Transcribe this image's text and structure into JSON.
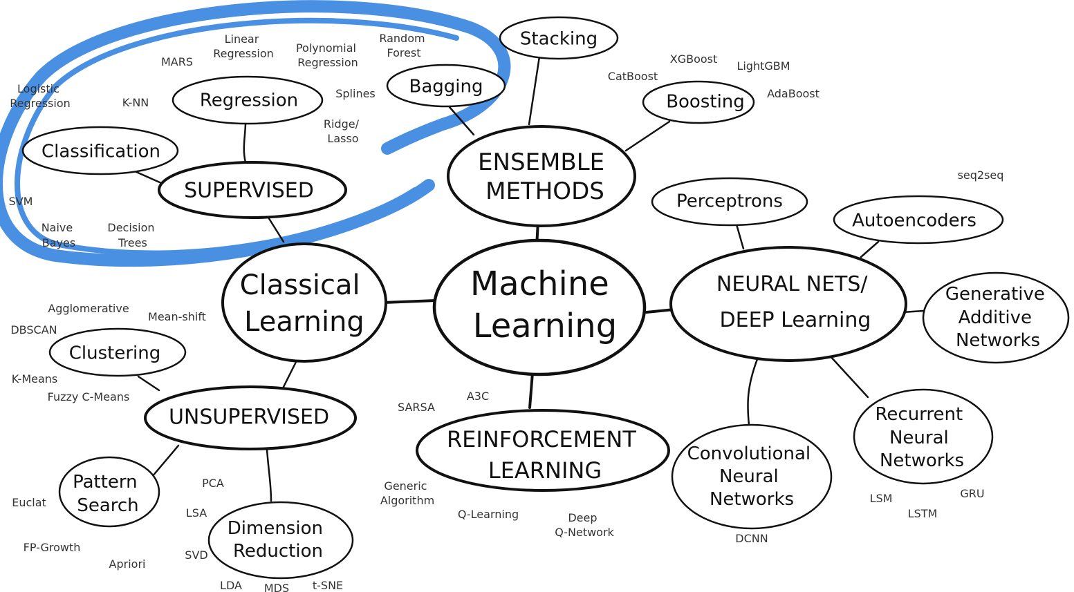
{
  "title": "Machine Learning",
  "colors": {
    "ink": "#111111",
    "leaf_ink": "#333333",
    "highlight": "#4a90e2"
  },
  "center": {
    "label_lines": [
      "Machine",
      "Learning"
    ]
  },
  "classical": {
    "label_lines": [
      "Classical",
      "Learning"
    ]
  },
  "supervised": {
    "label": "SUPERVISED",
    "regression": "Regression",
    "classification": "Classification",
    "regression_leaves": [
      {
        "lines": [
          "MARS"
        ]
      },
      {
        "lines": [
          "Linear",
          "Regression"
        ]
      },
      {
        "lines": [
          "Polynomial",
          "Regression"
        ]
      },
      {
        "lines": [
          "Splines"
        ]
      },
      {
        "lines": [
          "Ridge/",
          "Lasso"
        ]
      },
      {
        "lines": [
          "K-NN"
        ]
      }
    ],
    "classification_leaves": [
      {
        "lines": [
          "Logistic",
          "Regression"
        ]
      },
      {
        "lines": [
          "SVM"
        ]
      },
      {
        "lines": [
          "Naive",
          "Bayes"
        ]
      },
      {
        "lines": [
          "Decision",
          "Trees"
        ]
      }
    ]
  },
  "unsupervised": {
    "label": "UNSUPERVISED",
    "clustering": "Clustering",
    "clustering_leaves": [
      {
        "lines": [
          "Agglomerative"
        ]
      },
      {
        "lines": [
          "Mean-shift"
        ]
      },
      {
        "lines": [
          "DBSCAN"
        ]
      },
      {
        "lines": [
          "K-Means"
        ]
      },
      {
        "lines": [
          "Fuzzy C-Means"
        ]
      }
    ],
    "pattern_search_lines": [
      "Pattern",
      "Search"
    ],
    "pattern_leaves": [
      {
        "lines": [
          "Euclat"
        ]
      },
      {
        "lines": [
          "FP-Growth"
        ]
      },
      {
        "lines": [
          "Apriori"
        ]
      }
    ],
    "dimension_reduction_lines": [
      "Dimension",
      "Reduction"
    ],
    "dimension_leaves": [
      {
        "lines": [
          "PCA"
        ]
      },
      {
        "lines": [
          "LSA"
        ]
      },
      {
        "lines": [
          "SVD"
        ]
      },
      {
        "lines": [
          "LDA"
        ]
      },
      {
        "lines": [
          "MDS"
        ]
      },
      {
        "lines": [
          "t-SNE"
        ]
      }
    ]
  },
  "ensemble": {
    "label_lines": [
      "ENSEMBLE",
      "METHODS"
    ],
    "stacking": "Stacking",
    "bagging": "Bagging",
    "bagging_leaves": [
      {
        "lines": [
          "Random",
          "Forest"
        ]
      }
    ],
    "boosting": "Boosting",
    "boosting_leaves": [
      {
        "lines": [
          "CatBoost"
        ]
      },
      {
        "lines": [
          "XGBoost"
        ]
      },
      {
        "lines": [
          "LightGBM"
        ]
      },
      {
        "lines": [
          "AdaBoost"
        ]
      }
    ]
  },
  "reinforcement": {
    "label_lines": [
      "REINFORCEMENT",
      "LEARNING"
    ],
    "leaves": [
      {
        "lines": [
          "SARSA"
        ]
      },
      {
        "lines": [
          "A3C"
        ]
      },
      {
        "lines": [
          "Generic",
          "Algorithm"
        ]
      },
      {
        "lines": [
          "Q-Learning"
        ]
      },
      {
        "lines": [
          "Deep",
          "Q-Network"
        ]
      }
    ]
  },
  "neural": {
    "label_lines": [
      "NEURAL NETS/",
      "DEEP Learning"
    ],
    "perceptrons": "Perceptrons",
    "autoencoders": "Autoencoders",
    "autoencoder_leaves": [
      {
        "lines": [
          "seq2seq"
        ]
      }
    ],
    "gan_lines": [
      "Generative",
      "Additive",
      "Networks"
    ],
    "cnn_lines": [
      "Convolutional",
      "Neural",
      "Networks"
    ],
    "cnn_leaves": [
      {
        "lines": [
          "DCNN"
        ]
      }
    ],
    "rnn_lines": [
      "Recurrent",
      "Neural",
      "Networks"
    ],
    "rnn_leaves": [
      {
        "lines": [
          "LSM"
        ]
      },
      {
        "lines": [
          "LSTM"
        ]
      },
      {
        "lines": [
          "GRU"
        ]
      }
    ]
  }
}
